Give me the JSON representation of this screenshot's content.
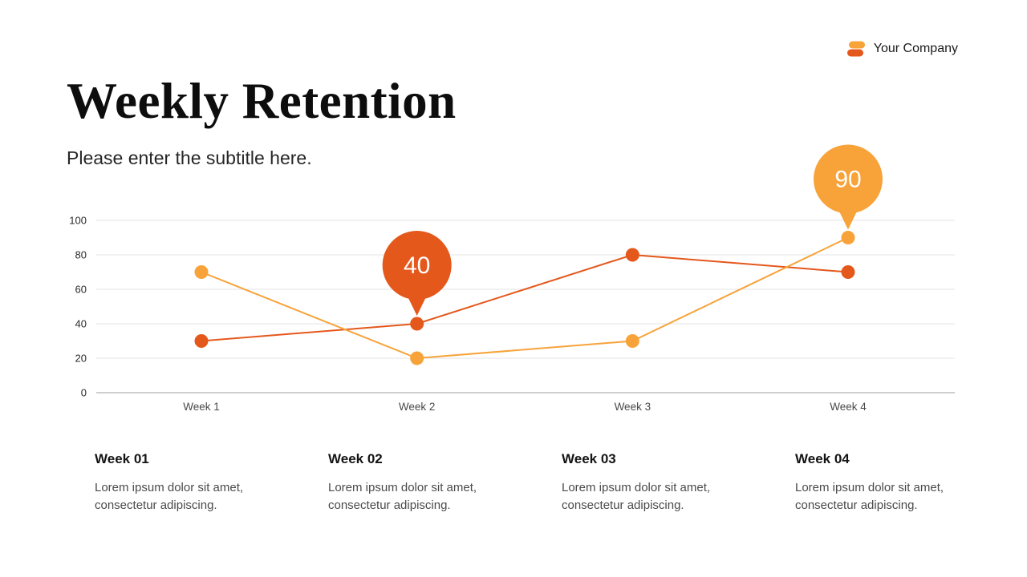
{
  "brand": {
    "name": "Your Company"
  },
  "header": {
    "title": "Weekly Retention",
    "subtitle": "Please enter the subtitle here."
  },
  "chart_data": {
    "type": "line",
    "categories": [
      "Week 1",
      "Week 2",
      "Week 3",
      "Week 4"
    ],
    "series": [
      {
        "name": "retention-dark-orange",
        "color": "#E4581C",
        "values": [
          30,
          40,
          80,
          70
        ]
      },
      {
        "name": "retention-light-orange",
        "color": "#F7A33A",
        "values": [
          70,
          20,
          30,
          90
        ]
      }
    ],
    "ylim": [
      0,
      100
    ],
    "yticks": [
      0,
      20,
      40,
      60,
      80,
      100
    ],
    "grid": true,
    "legend": "none",
    "annotations": [
      {
        "label": "40",
        "series": 0,
        "index": 1,
        "color": "#E4581C"
      },
      {
        "label": "90",
        "series": 1,
        "index": 3,
        "color": "#F7A33A"
      }
    ]
  },
  "footnotes": [
    {
      "title": "Week 01",
      "body": "Lorem ipsum dolor sit amet, consectetur adipiscing."
    },
    {
      "title": "Week 02",
      "body": "Lorem ipsum dolor sit amet, consectetur adipiscing."
    },
    {
      "title": "Week 03",
      "body": "Lorem ipsum dolor sit amet, consectetur adipiscing."
    },
    {
      "title": "Week 04",
      "body": "Lorem ipsum dolor sit amet, consectetur adipiscing."
    }
  ]
}
